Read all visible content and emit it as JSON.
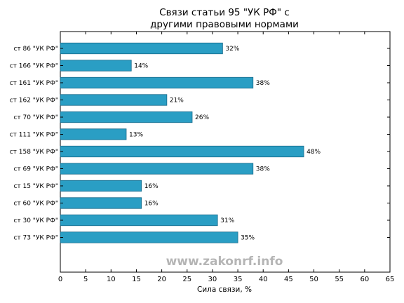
{
  "chart_data": {
    "type": "bar",
    "orientation": "horizontal",
    "title_lines": [
      "Связи статьи 95 \"УК РФ\" с",
      "другими правовыми нормами"
    ],
    "xlabel": "Сила связи, %",
    "ylabel": "",
    "categories": [
      "ст 86 \"УК РФ\"",
      "ст 166 \"УК РФ\"",
      "ст 161 \"УК РФ\"",
      "ст 162 \"УК РФ\"",
      "ст 70 \"УК РФ\"",
      "ст 111 \"УК РФ\"",
      "ст 158 \"УК РФ\"",
      "ст 69 \"УК РФ\"",
      "ст 15 \"УК РФ\"",
      "ст 60 \"УК РФ\"",
      "ст 30 \"УК РФ\"",
      "ст 73 \"УК РФ\""
    ],
    "values": [
      32,
      14,
      38,
      21,
      26,
      13,
      48,
      38,
      16,
      16,
      31,
      35
    ],
    "data_labels": [
      "32%",
      "14%",
      "38%",
      "21%",
      "26%",
      "13%",
      "48%",
      "38%",
      "16%",
      "16%",
      "31%",
      "35%"
    ],
    "xlim": [
      0,
      65
    ],
    "xticks": [
      0,
      5,
      10,
      15,
      20,
      25,
      30,
      35,
      40,
      45,
      50,
      55,
      60,
      65
    ],
    "grid": false,
    "bar_color": "#2a9ec4",
    "bar_edge_color": "#1a6a8a"
  },
  "watermark": "www.zakonrf.info"
}
